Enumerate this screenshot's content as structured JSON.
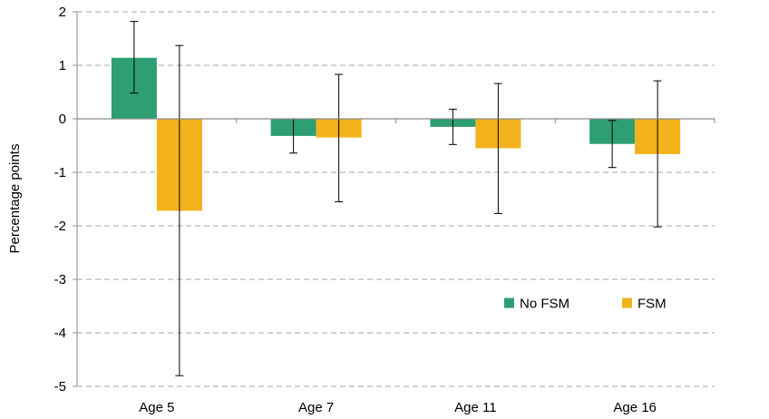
{
  "chart_data": {
    "type": "bar",
    "title": "",
    "xlabel": "",
    "ylabel": "Percentage points",
    "ylim": [
      -5,
      2
    ],
    "yticks": [
      2,
      1,
      0,
      -1,
      -2,
      -3,
      -4,
      -5
    ],
    "grid": "horizontal dashed",
    "legend_position": "lower-right",
    "categories": [
      "Age 5",
      "Age 7",
      "Age 11",
      "Age 16"
    ],
    "series": [
      {
        "name": "No FSM",
        "color": "#2e9e74",
        "values": [
          1.14,
          -0.32,
          -0.15,
          -0.47
        ],
        "error_low": [
          0.48,
          -0.64,
          -0.48,
          -0.91
        ],
        "error_high": [
          1.82,
          0.0,
          0.18,
          -0.03
        ]
      },
      {
        "name": "FSM",
        "color": "#f2b21c",
        "values": [
          -1.72,
          -0.35,
          -0.55,
          -0.66
        ],
        "error_low": [
          -4.8,
          -1.55,
          -1.77,
          -2.02
        ],
        "error_high": [
          1.37,
          0.83,
          0.66,
          0.71
        ]
      }
    ]
  }
}
